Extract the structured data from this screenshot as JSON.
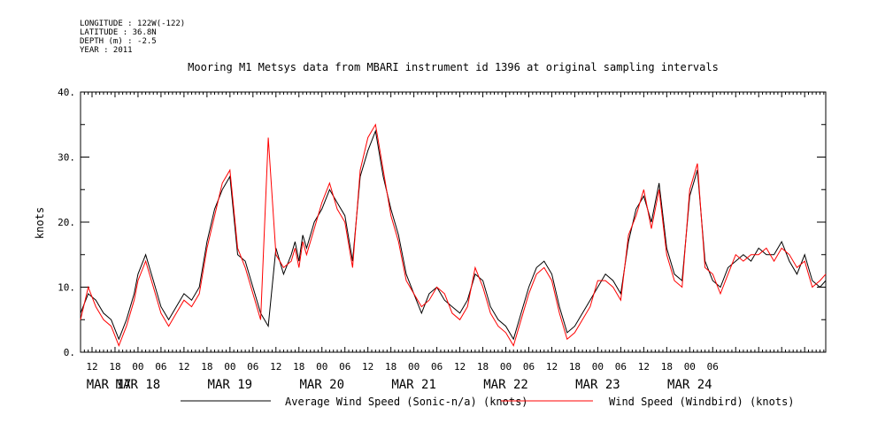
{
  "header": {
    "longitude": "LONGITUDE : 122W(-122)",
    "latitude": "LATITUDE : 36.8N",
    "depth": "DEPTH (m) : -2.5",
    "year": "YEAR : 2011",
    "title": "Mooring M1 Metsys data from MBARI instrument id 1396 at original sampling intervals"
  },
  "chart_data": {
    "type": "line",
    "title": "Mooring M1 Metsys data from MBARI instrument id 1396 at original sampling intervals",
    "ylabel": "knots",
    "ylim": [
      0,
      40
    ],
    "yticks": [
      0,
      10,
      20,
      30,
      40
    ],
    "ytick_labels": [
      "0.",
      "10.",
      "20.",
      "30.",
      "40."
    ],
    "x_unit": "hours since MAR 17 00",
    "xlim": [
      9,
      203.5
    ],
    "hour_ticks": [
      "12",
      "18",
      "00",
      "06",
      "12",
      "18",
      "00",
      "06",
      "12",
      "18",
      "00",
      "06",
      "12",
      "18",
      "00",
      "06",
      "12",
      "18",
      "00",
      "06",
      "12",
      "18",
      "00",
      "06",
      "12",
      "18",
      "00",
      "06"
    ],
    "date_labels": [
      "MAR 17",
      "MAR 18",
      "MAR 19",
      "MAR 20",
      "MAR 21",
      "MAR 22",
      "MAR 23",
      "MAR 24"
    ],
    "series": [
      {
        "name": "Average Wind Speed (Sonic-n/a) (knots)",
        "color": "#000000",
        "x": [
          9,
          11,
          13,
          15,
          17,
          19,
          21,
          23,
          24,
          26,
          28,
          30,
          32,
          34,
          36,
          38,
          40,
          42,
          44,
          46,
          48,
          50,
          52,
          54,
          56,
          58,
          60,
          62,
          64,
          65,
          66,
          67,
          68,
          70,
          72,
          74,
          76,
          78,
          80,
          82,
          84,
          86,
          88,
          90,
          92,
          94,
          96,
          98,
          100,
          102,
          104,
          106,
          108,
          110,
          112,
          114,
          116,
          118,
          120,
          122,
          124,
          126,
          128,
          130,
          132,
          134,
          136,
          138,
          140,
          142,
          144,
          146,
          148,
          150,
          152,
          154,
          156,
          158,
          160,
          162,
          164,
          166,
          168,
          170,
          172,
          174,
          176,
          178,
          180,
          182,
          184,
          186,
          188,
          190,
          192,
          194,
          196,
          198,
          200,
          202,
          203.5
        ],
        "values": [
          6,
          9,
          8,
          6,
          5,
          2,
          5,
          9,
          12,
          15,
          11,
          7,
          5,
          7,
          9,
          8,
          10,
          17,
          22,
          25,
          27,
          15,
          14,
          10,
          6,
          4,
          16,
          12,
          15,
          17,
          14,
          18,
          16,
          20,
          22,
          25,
          23,
          21,
          14,
          27,
          31,
          34,
          27,
          22,
          18,
          12,
          9,
          6,
          9,
          10,
          8,
          7,
          6,
          8,
          12,
          11,
          7,
          5,
          4,
          2,
          6,
          10,
          13,
          14,
          12,
          7,
          3,
          4,
          6,
          8,
          10,
          12,
          11,
          9,
          17,
          22,
          24,
          20,
          26,
          16,
          12,
          11,
          24,
          28,
          14,
          11,
          10,
          13,
          14,
          15,
          14,
          16,
          15,
          15,
          17,
          14,
          12,
          15,
          11,
          10,
          11
        ]
      },
      {
        "name": "Wind Speed (Windbird) (knots)",
        "color": "#ff0000",
        "x": [
          9,
          11,
          13,
          15,
          17,
          19,
          21,
          23,
          24,
          26,
          28,
          30,
          32,
          34,
          36,
          38,
          40,
          42,
          44,
          46,
          48,
          50,
          52,
          54,
          56,
          58,
          60,
          62,
          64,
          65,
          66,
          67,
          68,
          70,
          72,
          74,
          76,
          78,
          80,
          82,
          84,
          86,
          88,
          90,
          92,
          94,
          96,
          98,
          100,
          102,
          104,
          106,
          108,
          110,
          112,
          114,
          116,
          118,
          120,
          122,
          124,
          126,
          128,
          130,
          132,
          134,
          136,
          138,
          140,
          142,
          144,
          146,
          148,
          150,
          152,
          154,
          156,
          158,
          160,
          162,
          164,
          166,
          168,
          170,
          172,
          174,
          176,
          178,
          180,
          182,
          184,
          186,
          188,
          190,
          192,
          194,
          196,
          198,
          200,
          202,
          203.5
        ],
        "values": [
          5,
          10,
          7,
          5,
          4,
          1,
          4,
          8,
          11,
          14,
          10,
          6,
          4,
          6,
          8,
          7,
          9,
          16,
          21,
          26,
          28,
          16,
          13,
          9,
          5,
          33,
          15,
          13,
          14,
          16,
          13,
          17,
          15,
          19,
          23,
          26,
          22,
          20,
          13,
          28,
          33,
          35,
          28,
          21,
          17,
          11,
          9,
          7,
          8,
          10,
          9,
          6,
          5,
          7,
          13,
          10,
          6,
          4,
          3,
          1,
          5,
          9,
          12,
          13,
          11,
          6,
          2,
          3,
          5,
          7,
          11,
          11,
          10,
          8,
          18,
          21,
          25,
          19,
          25,
          15,
          11,
          10,
          25,
          29,
          13,
          12,
          9,
          12,
          15,
          14,
          15,
          15,
          16,
          14,
          16,
          15,
          13,
          14,
          10,
          11,
          12
        ]
      }
    ]
  }
}
